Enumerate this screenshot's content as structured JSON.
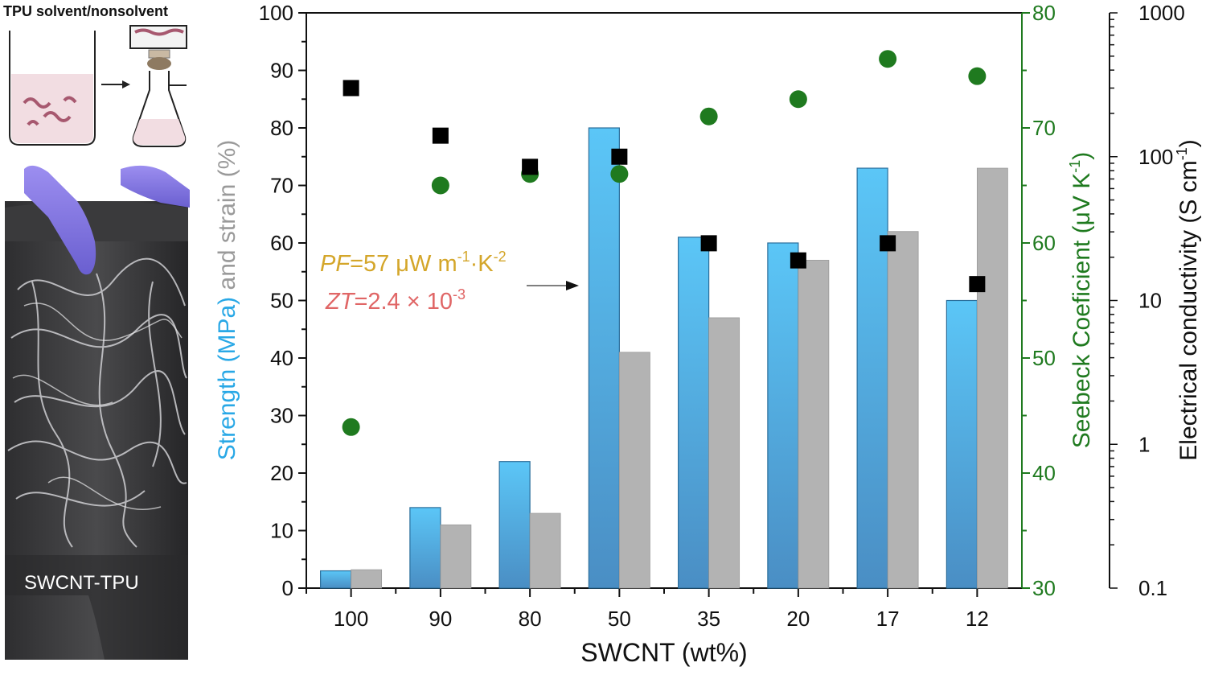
{
  "illustration": {
    "title": "TPU solvent/nonsolvent",
    "photo_label": "SWCNT-TPU"
  },
  "annotation": {
    "pf_sym": "PF",
    "pf_val": "=57 μW m",
    "pf_unit1": "-1",
    "pf_mid": "·K",
    "pf_unit2": "-2",
    "zt_sym": "ZT",
    "zt_val": "=2.4 × 10",
    "zt_exp": "-3"
  },
  "colors": {
    "strength_bar": "#5bc6f7",
    "strength_bar_bottom": "#4a8ec4",
    "strain_bar": "#b3b3b3",
    "seebeck": "#1f7a1f",
    "conductivity": "#000000",
    "strength_label": "#29a8e6",
    "strain_label": "#9a9a9a",
    "seebeck_label": "#1f7a1f",
    "pf_color": "#d4a62a",
    "zt_color": "#e06666"
  },
  "chart_data": {
    "type": "bar",
    "categories": [
      "100",
      "90",
      "80",
      "50",
      "35",
      "20",
      "17",
      "12"
    ],
    "xlabel": "SWCNT (wt%)",
    "ylabel_parts": [
      "Strength (MPa)",
      " and strain ",
      "(%)"
    ],
    "y2label": "Seebeck Coeficient (μV K",
    "y2label_exp": "-1",
    "y2label_end": ")",
    "y3label": "Electrical conductivity (S cm",
    "y3label_exp": "-1",
    "y3label_end": ")",
    "ylim": [
      0,
      100
    ],
    "y_ticks": [
      "0",
      "10",
      "20",
      "30",
      "40",
      "50",
      "60",
      "70",
      "80",
      "90",
      "100"
    ],
    "y2lim": [
      30,
      80
    ],
    "y2_ticks": [
      "30",
      "40",
      "50",
      "60",
      "70",
      "80"
    ],
    "y3lim": [
      0.1,
      1000
    ],
    "y3_scale": "log",
    "y3_ticks": [
      "0.1",
      "1",
      "10",
      "100",
      "1000"
    ],
    "series": [
      {
        "name": "Strength (MPa)",
        "kind": "bar",
        "values": [
          3,
          14,
          22,
          80,
          61,
          60,
          73,
          50
        ]
      },
      {
        "name": "strain (%)",
        "kind": "bar",
        "values": [
          3.2,
          11,
          13,
          41,
          47,
          57,
          62,
          73
        ]
      },
      {
        "name": "Seebeck Coeficient",
        "kind": "scatter",
        "marker": "circle",
        "axis": "y2",
        "values": [
          44,
          65,
          66,
          66,
          71,
          72.5,
          76,
          74.5
        ]
      },
      {
        "name": "Electrical conductivity",
        "kind": "scatter",
        "marker": "square",
        "axis": "y3",
        "values": [
          300,
          140,
          85,
          100,
          25,
          19,
          25,
          13
        ]
      }
    ]
  }
}
